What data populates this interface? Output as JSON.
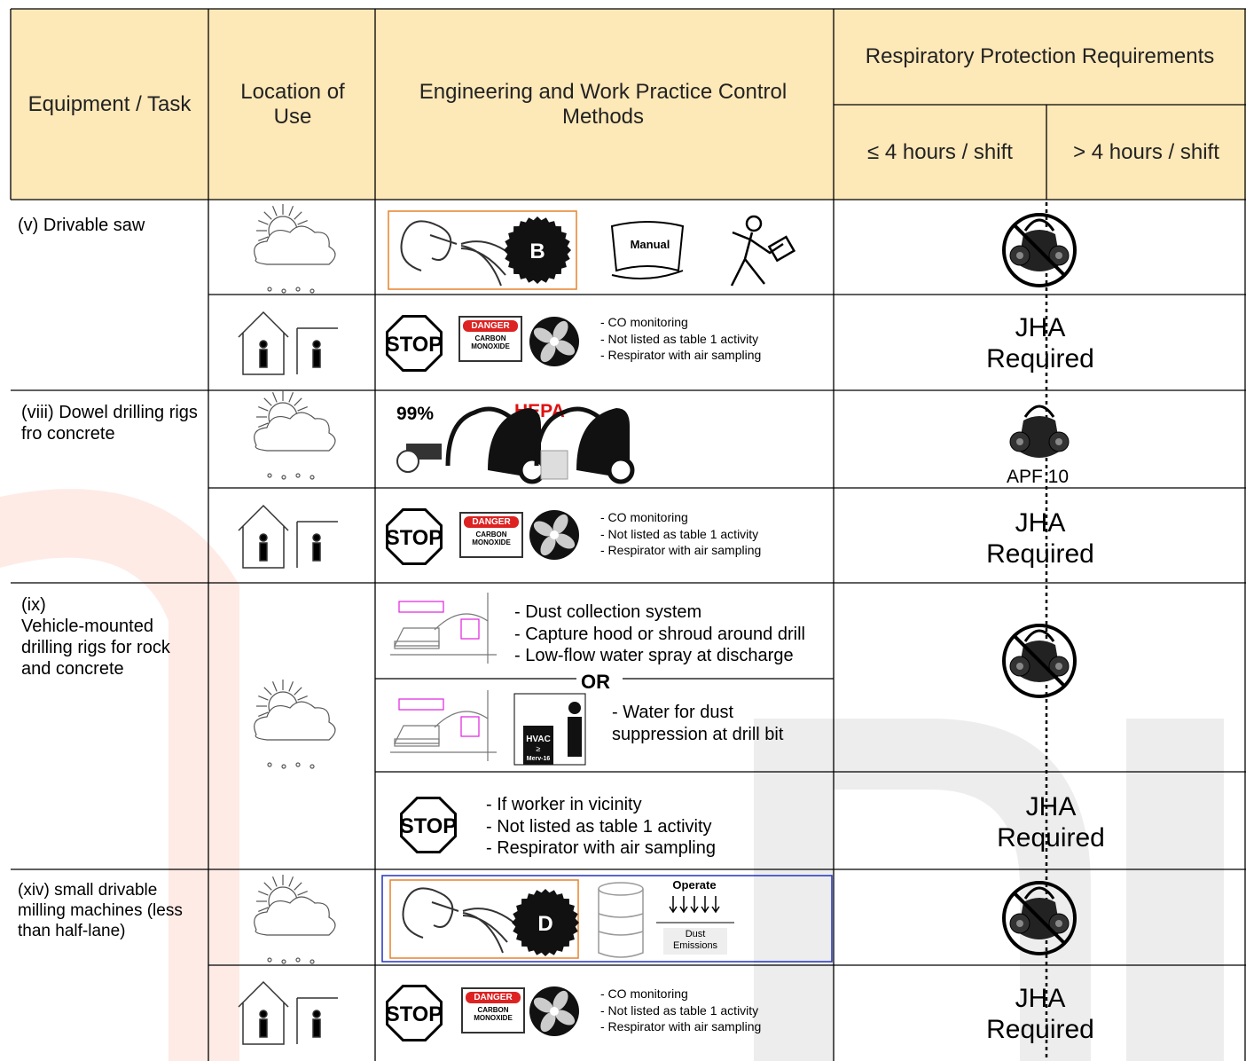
{
  "header": {
    "equipment_task": "Equipment / Task",
    "location": "Location of Use",
    "controls": "Engineering and Work Practice Control Methods",
    "respiratory": "Respiratory Protection Requirements",
    "up_to_4h": "≤ 4 hours / shift",
    "over_4h": "> 4 hours / shift"
  },
  "rows": [
    {
      "equipment": "(v) Drivable saw",
      "outdoor": {
        "blade": "B",
        "manual": "Manual"
      },
      "indoor": {
        "stop": "STOP",
        "danger": "DANGER",
        "danger_text": "CARBON MONOXIDE",
        "notes": [
          "- CO monitoring",
          "- Not listed as table 1 activity",
          "- Respirator with air sampling"
        ],
        "requirement": "JHA Required"
      }
    },
    {
      "equipment": "(viii) Dowel drilling rigs fro concrete",
      "outdoor": {
        "efficiency": "99%",
        "filter": "HEPA",
        "requirement": "APF 10"
      },
      "indoor": {
        "stop": "STOP",
        "danger": "DANGER",
        "danger_text": "CARBON MONOXIDE",
        "notes": [
          "- CO monitoring",
          "- Not listed as table 1 activity",
          "- Respirator with air sampling"
        ],
        "requirement": "JHA Required"
      }
    },
    {
      "equipment": "(ix)\nVehicle-mounted drilling rigs for rock and concrete",
      "outdoor": {
        "option_a": [
          "- Dust collection system",
          "- Capture hood or shroud around drill",
          "- Low-flow water spray at discharge"
        ],
        "separator": "OR",
        "hvac": "HVAC",
        "hvac_rating": "≥",
        "hvac_merv": "Merv-16",
        "option_b": "- Water for dust suppression at drill bit"
      },
      "indoor": {
        "stop": "STOP",
        "notes": [
          "- If worker in vicinity",
          "- Not listed as table 1 activity",
          "- Respirator with air sampling"
        ],
        "requirement": "JHA Required"
      }
    },
    {
      "equipment": "(xiv) small drivable milling machines (less than half-lane)",
      "outdoor": {
        "blade": "D",
        "operate": "Operate",
        "emissions": "Dust Emissions"
      },
      "indoor": {
        "stop": "STOP",
        "danger": "DANGER",
        "danger_text": "CARBON MONOXIDE",
        "notes": [
          "- CO monitoring",
          "- Not listed as table 1 activity",
          "- Respirator with air sampling"
        ],
        "requirement": "JHA Required"
      }
    }
  ]
}
